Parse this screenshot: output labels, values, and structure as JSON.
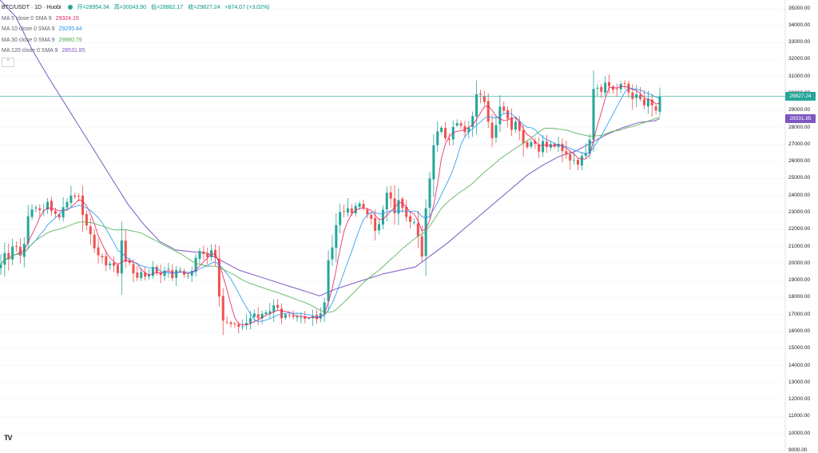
{
  "header": {
    "title": "BTC/USDT · 1D · Huobi",
    "open": "开=28954.34",
    "high": "高=30043.90",
    "low": "低=28862.17",
    "close": "收=29827.24",
    "change": "+874.07 (+3.02%)"
  },
  "legend": [
    {
      "label": "MA 5 close 0 SMA 9",
      "value": "29324.15",
      "color": "#e91e63"
    },
    {
      "label": "MA 10 close 0 SMA 9",
      "value": "29295.44",
      "color": "#2196f3"
    },
    {
      "label": "MA 30 close 0 SMA 9",
      "value": "29980.79",
      "color": "#4caf50"
    },
    {
      "label": "MA 120 close 0 SMA 9",
      "value": "28531.85",
      "color": "#7e57c2"
    }
  ],
  "collapse_icon": "chevron-up-icon",
  "price_badges": {
    "last": {
      "value": "29827.24",
      "price": 29827.24,
      "color": "#26a69a"
    },
    "ma120": {
      "value": "28531.85",
      "price": 28531.85,
      "color": "#7e57c2"
    }
  },
  "colors": {
    "up": "#26a69a",
    "down": "#ef5350",
    "grid": "#f0f3fa",
    "price_line": "#26a69a"
  },
  "logo": "TV",
  "chart_data": {
    "type": "candlestick",
    "title": "BTC/USDT · 1D · Huobi",
    "ylim": [
      9000,
      35500
    ],
    "y_ticks": [
      "35000.00",
      "34000.00",
      "33000.00",
      "32000.00",
      "31000.00",
      "30000.00",
      "29000.00",
      "28000.00",
      "27000.00",
      "26000.00",
      "25000.00",
      "24000.00",
      "23000.00",
      "22000.00",
      "21000.00",
      "20000.00",
      "19000.00",
      "18000.00",
      "17000.00",
      "16000.00",
      "15000.00",
      "14000.00",
      "13000.00",
      "12000.00",
      "11000.00",
      "10000.00",
      "9000.00"
    ],
    "y_tick_values": [
      35000,
      34000,
      33000,
      32000,
      31000,
      30000,
      29000,
      28000,
      27000,
      26000,
      25000,
      24000,
      23000,
      22000,
      21000,
      20000,
      19000,
      18000,
      17000,
      16000,
      15000,
      14000,
      13000,
      12000,
      11000,
      10000,
      9000
    ],
    "close_path": [
      [
        0,
        19800
      ],
      [
        6,
        20600
      ],
      [
        12,
        20400
      ],
      [
        18,
        21600
      ],
      [
        24,
        20200
      ],
      [
        30,
        21300
      ],
      [
        36,
        22800
      ],
      [
        42,
        23300
      ],
      [
        48,
        23400
      ],
      [
        54,
        22900
      ],
      [
        60,
        23600
      ],
      [
        66,
        23200
      ],
      [
        72,
        22700
      ],
      [
        78,
        23100
      ],
      [
        84,
        23800
      ],
      [
        90,
        24000
      ],
      [
        96,
        23900
      ],
      [
        100,
        24200
      ],
      [
        106,
        22300
      ],
      [
        112,
        21600
      ],
      [
        118,
        21100
      ],
      [
        124,
        20400
      ],
      [
        130,
        20000
      ],
      [
        136,
        20100
      ],
      [
        142,
        19900
      ],
      [
        148,
        19300
      ],
      [
        153,
        21800
      ],
      [
        158,
        20000
      ],
      [
        164,
        19700
      ],
      [
        170,
        19200
      ],
      [
        176,
        19500
      ],
      [
        182,
        19300
      ],
      [
        188,
        19600
      ],
      [
        194,
        19700
      ],
      [
        200,
        19300
      ],
      [
        206,
        19800
      ],
      [
        212,
        19400
      ],
      [
        218,
        19200
      ],
      [
        224,
        19700
      ],
      [
        230,
        19500
      ],
      [
        236,
        19200
      ],
      [
        242,
        19800
      ],
      [
        248,
        20600
      ],
      [
        254,
        20800
      ],
      [
        260,
        20500
      ],
      [
        266,
        20900
      ],
      [
        272,
        20300
      ],
      [
        276,
        16900
      ],
      [
        282,
        16500
      ],
      [
        288,
        16400
      ],
      [
        294,
        16200
      ],
      [
        300,
        16400
      ],
      [
        306,
        16300
      ],
      [
        312,
        16800
      ],
      [
        318,
        16900
      ],
      [
        324,
        16800
      ],
      [
        330,
        17200
      ],
      [
        336,
        17300
      ],
      [
        342,
        17400
      ],
      [
        348,
        17600
      ],
      [
        352,
        16900
      ],
      [
        356,
        16900
      ],
      [
        362,
        16800
      ],
      [
        368,
        16600
      ],
      [
        374,
        16700
      ],
      [
        380,
        16600
      ],
      [
        386,
        16700
      ],
      [
        392,
        16900
      ],
      [
        398,
        17000
      ],
      [
        404,
        17300
      ],
      [
        408,
        18200
      ],
      [
        412,
        21000
      ],
      [
        416,
        21000
      ],
      [
        420,
        22000
      ],
      [
        424,
        22800
      ],
      [
        430,
        23200
      ],
      [
        436,
        23000
      ],
      [
        442,
        23300
      ],
      [
        448,
        23600
      ],
      [
        454,
        23300
      ],
      [
        460,
        23100
      ],
      [
        466,
        22200
      ],
      [
        472,
        21800
      ],
      [
        478,
        22600
      ],
      [
        482,
        24100
      ],
      [
        488,
        24300
      ],
      [
        494,
        22800
      ],
      [
        500,
        23700
      ],
      [
        506,
        23200
      ],
      [
        512,
        22700
      ],
      [
        518,
        22400
      ],
      [
        524,
        21400
      ],
      [
        528,
        20200
      ],
      [
        532,
        22600
      ],
      [
        536,
        24300
      ],
      [
        540,
        26000
      ],
      [
        544,
        27100
      ],
      [
        548,
        28000
      ],
      [
        552,
        28300
      ],
      [
        556,
        27800
      ],
      [
        560,
        27200
      ],
      [
        566,
        28000
      ],
      [
        572,
        28100
      ],
      [
        578,
        27900
      ],
      [
        584,
        27900
      ],
      [
        590,
        28100
      ],
      [
        594,
        30000
      ],
      [
        598,
        30100
      ],
      [
        602,
        29900
      ],
      [
        606,
        29800
      ],
      [
        610,
        28800
      ],
      [
        614,
        27500
      ],
      [
        618,
        27500
      ],
      [
        622,
        28500
      ],
      [
        628,
        29400
      ],
      [
        634,
        28900
      ],
      [
        640,
        28100
      ],
      [
        646,
        28300
      ],
      [
        652,
        27900
      ],
      [
        656,
        26900
      ],
      [
        662,
        27100
      ],
      [
        668,
        27200
      ],
      [
        674,
        26800
      ],
      [
        680,
        27100
      ],
      [
        686,
        26800
      ],
      [
        692,
        27000
      ],
      [
        698,
        26900
      ],
      [
        704,
        26500
      ],
      [
        710,
        26300
      ],
      [
        716,
        26100
      ],
      [
        720,
        26200
      ],
      [
        726,
        25900
      ],
      [
        732,
        26500
      ],
      [
        738,
        27400
      ],
      [
        742,
        30400
      ],
      [
        746,
        30500
      ],
      [
        752,
        30300
      ],
      [
        758,
        30600
      ],
      [
        764,
        30400
      ],
      [
        770,
        30200
      ],
      [
        776,
        30300
      ],
      [
        782,
        30600
      ],
      [
        788,
        30000
      ],
      [
        794,
        29800
      ],
      [
        800,
        29700
      ],
      [
        806,
        29300
      ],
      [
        812,
        29500
      ],
      [
        818,
        29100
      ],
      [
        822,
        29000
      ],
      [
        826,
        29827
      ]
    ],
    "series": [
      {
        "name": "MA 5 close 0 SMA 9",
        "color": "#e91e63",
        "window": 5
      },
      {
        "name": "MA 10 close 0 SMA 9",
        "color": "#2196f3",
        "window": 10
      },
      {
        "name": "MA 30 close 0 SMA 9",
        "color": "#4caf50",
        "window": 30
      },
      {
        "name": "MA 120 close 0 SMA 9",
        "color": "#7e57c2",
        "points": [
          [
            0,
            35500
          ],
          [
            20,
            34500
          ],
          [
            40,
            32600
          ],
          [
            60,
            31000
          ],
          [
            80,
            29500
          ],
          [
            100,
            28000
          ],
          [
            120,
            26500
          ],
          [
            140,
            25000
          ],
          [
            160,
            23500
          ],
          [
            180,
            22300
          ],
          [
            200,
            21300
          ],
          [
            220,
            20800
          ],
          [
            240,
            20700
          ],
          [
            260,
            20600
          ],
          [
            280,
            20100
          ],
          [
            300,
            19600
          ],
          [
            320,
            19300
          ],
          [
            340,
            19000
          ],
          [
            360,
            18700
          ],
          [
            380,
            18400
          ],
          [
            400,
            18100
          ],
          [
            420,
            18500
          ],
          [
            440,
            18800
          ],
          [
            460,
            19100
          ],
          [
            480,
            19400
          ],
          [
            500,
            19600
          ],
          [
            520,
            19800
          ],
          [
            540,
            20500
          ],
          [
            560,
            21200
          ],
          [
            580,
            22000
          ],
          [
            600,
            22800
          ],
          [
            620,
            23600
          ],
          [
            640,
            24400
          ],
          [
            660,
            25200
          ],
          [
            680,
            25800
          ],
          [
            700,
            26300
          ],
          [
            720,
            26600
          ],
          [
            740,
            27100
          ],
          [
            760,
            27600
          ],
          [
            780,
            28000
          ],
          [
            800,
            28300
          ],
          [
            820,
            28400
          ],
          [
            826,
            28531
          ]
        ]
      }
    ]
  }
}
